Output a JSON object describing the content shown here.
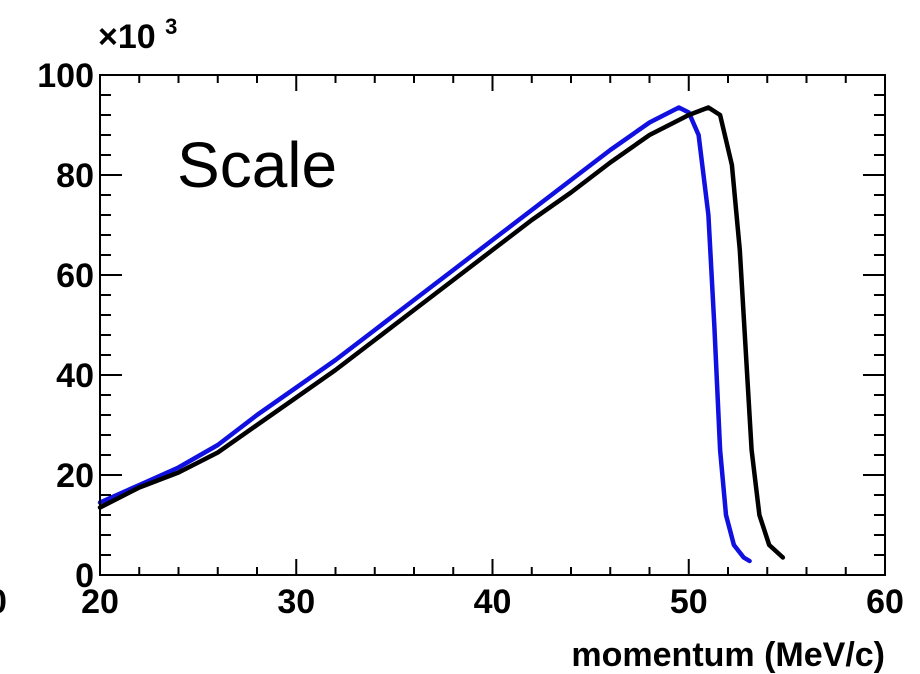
{
  "chart_data": {
    "type": "line",
    "title": "",
    "annotation": "Scale",
    "xlabel": "momentum (MeV/c)",
    "ylabel": "",
    "y_multiplier": {
      "base": "×10",
      "exponent": "3"
    },
    "xlim": [
      20,
      60
    ],
    "ylim": [
      0,
      100
    ],
    "x_ticks": [
      20,
      30,
      40,
      50,
      60
    ],
    "y_ticks": [
      0,
      20,
      40,
      60,
      80,
      100
    ],
    "clipped_left_tick_label": "0",
    "grid": false,
    "series": [
      {
        "color": "#1010e0",
        "points": [
          [
            20,
            14.5
          ],
          [
            22,
            18
          ],
          [
            24,
            21.5
          ],
          [
            26,
            26
          ],
          [
            28,
            32
          ],
          [
            30,
            37.5
          ],
          [
            32,
            43
          ],
          [
            34,
            49
          ],
          [
            36,
            55
          ],
          [
            38,
            61
          ],
          [
            40,
            67
          ],
          [
            42,
            73
          ],
          [
            44,
            79
          ],
          [
            46,
            85
          ],
          [
            48,
            90.5
          ],
          [
            49.5,
            93.5
          ],
          [
            50,
            92.5
          ],
          [
            50.5,
            88
          ],
          [
            51,
            72
          ],
          [
            51.3,
            50
          ],
          [
            51.6,
            25
          ],
          [
            51.9,
            12
          ],
          [
            52.3,
            6
          ],
          [
            52.8,
            3.5
          ],
          [
            53.1,
            2.8
          ]
        ]
      },
      {
        "color": "#000000",
        "points": [
          [
            20,
            13.5
          ],
          [
            22,
            17.5
          ],
          [
            24,
            20.5
          ],
          [
            26,
            24.5
          ],
          [
            28,
            30
          ],
          [
            30,
            35.5
          ],
          [
            32,
            41
          ],
          [
            34,
            47
          ],
          [
            36,
            53
          ],
          [
            38,
            59
          ],
          [
            40,
            65
          ],
          [
            42,
            71
          ],
          [
            44,
            76.5
          ],
          [
            46,
            82.5
          ],
          [
            48,
            88
          ],
          [
            50,
            92
          ],
          [
            51,
            93.5
          ],
          [
            51.6,
            92
          ],
          [
            52.2,
            82
          ],
          [
            52.6,
            65
          ],
          [
            52.9,
            45
          ],
          [
            53.2,
            25
          ],
          [
            53.6,
            12
          ],
          [
            54.1,
            6
          ],
          [
            54.8,
            3.5
          ]
        ]
      }
    ]
  }
}
